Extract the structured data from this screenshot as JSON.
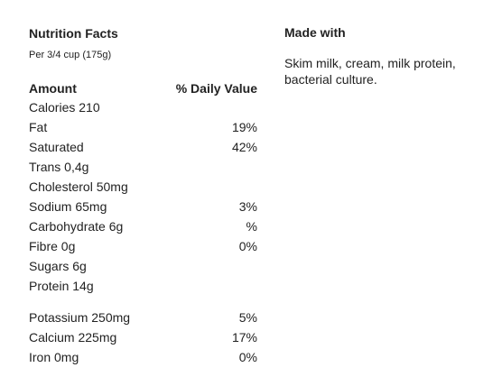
{
  "nutrition": {
    "title": "Nutrition Facts",
    "serving": "Per 3/4 cup (175g)",
    "header": {
      "amount": "Amount",
      "daily_value": "% Daily Value"
    },
    "rows": [
      {
        "name": "Calories 210",
        "pct": ""
      },
      {
        "name": "Fat",
        "pct": "19%"
      },
      {
        "name": "Saturated",
        "pct": "42%"
      },
      {
        "name": "Trans 0,4g",
        "pct": ""
      },
      {
        "name": "Cholesterol 50mg",
        "pct": ""
      },
      {
        "name": "Sodium 65mg",
        "pct": "3%"
      },
      {
        "name": "Carbohydrate 6g",
        "pct": "%"
      },
      {
        "name": "Fibre 0g",
        "pct": "0%"
      },
      {
        "name": "Sugars 6g",
        "pct": ""
      },
      {
        "name": "Protein 14g",
        "pct": ""
      }
    ],
    "minerals": [
      {
        "name": "Potassium 250mg",
        "pct": "5%"
      },
      {
        "name": "Calcium 225mg",
        "pct": "17%"
      },
      {
        "name": "Iron 0mg",
        "pct": "0%"
      }
    ]
  },
  "made_with": {
    "title": "Made with",
    "text": "Skim milk, cream, milk protein, bacterial culture."
  }
}
